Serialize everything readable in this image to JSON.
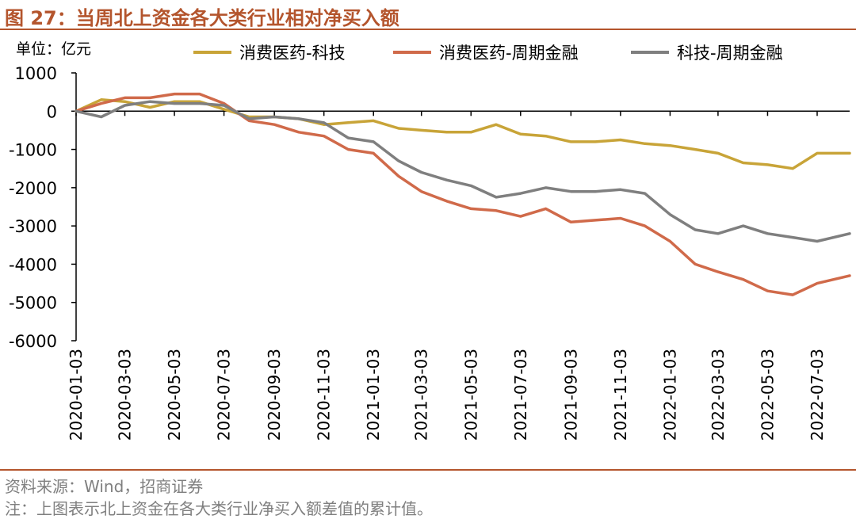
{
  "header": {
    "title": "图 27：当周北上资金各大类行业相对净买入额"
  },
  "footer": {
    "source": "资料来源：Wind，招商证券",
    "note": "注：上图表示北上资金在各大类行业净买入额差值的累计值。"
  },
  "colors": {
    "brand": "#b4552d",
    "series_1": "#c8a438",
    "series_2": "#d06a4a",
    "series_3": "#7f7f7f"
  },
  "chart_data": {
    "type": "line",
    "title": "当周北上资金各大类行业相对净买入额",
    "unit_label": "单位：亿元",
    "ylabel": "亿元",
    "xlabel": "",
    "ylim": [
      -6000,
      1000
    ],
    "yticks": [
      1000,
      0,
      -1000,
      -2000,
      -3000,
      -4000,
      -5000,
      -6000
    ],
    "ytick_labels": [
      "1000",
      "0",
      "-1000",
      "-2000",
      "-3000",
      "-4000",
      "-5000",
      "-6000"
    ],
    "xticks": [
      "2020-01-03",
      "2020-03-03",
      "2020-05-03",
      "2020-07-03",
      "2020-09-03",
      "2020-11-03",
      "2021-01-03",
      "2021-03-03",
      "2021-05-03",
      "2021-07-03",
      "2021-09-03",
      "2021-11-03",
      "2022-01-03",
      "2022-03-03",
      "2022-05-03",
      "2022-07-03"
    ],
    "x_start": "2020-01-03",
    "x_end": "2022-08-12",
    "grid": false,
    "legend_position": "top",
    "series": [
      {
        "name": "消费医药-科技",
        "color": "#c8a438",
        "x": [
          "2020-01-03",
          "2020-02-03",
          "2020-03-03",
          "2020-04-03",
          "2020-05-03",
          "2020-06-03",
          "2020-07-03",
          "2020-08-03",
          "2020-09-03",
          "2020-10-03",
          "2020-11-03",
          "2020-12-03",
          "2021-01-03",
          "2021-02-03",
          "2021-03-03",
          "2021-04-03",
          "2021-05-03",
          "2021-06-03",
          "2021-07-03",
          "2021-08-03",
          "2021-09-03",
          "2021-10-03",
          "2021-11-03",
          "2021-12-03",
          "2022-01-03",
          "2022-02-03",
          "2022-03-03",
          "2022-04-03",
          "2022-05-03",
          "2022-06-03",
          "2022-07-03",
          "2022-08-12"
        ],
        "values": [
          0,
          300,
          250,
          100,
          250,
          250,
          50,
          -150,
          -150,
          -200,
          -350,
          -300,
          -250,
          -450,
          -500,
          -550,
          -550,
          -350,
          -600,
          -650,
          -800,
          -800,
          -750,
          -850,
          -900,
          -1000,
          -1100,
          -1350,
          -1400,
          -1500,
          -1100,
          -1100
        ]
      },
      {
        "name": "消费医药-周期金融",
        "color": "#d06a4a",
        "x": [
          "2020-01-03",
          "2020-02-03",
          "2020-03-03",
          "2020-04-03",
          "2020-05-03",
          "2020-06-03",
          "2020-07-03",
          "2020-08-03",
          "2020-09-03",
          "2020-10-03",
          "2020-11-03",
          "2020-12-03",
          "2021-01-03",
          "2021-02-03",
          "2021-03-03",
          "2021-04-03",
          "2021-05-03",
          "2021-06-03",
          "2021-07-03",
          "2021-08-03",
          "2021-09-03",
          "2021-10-03",
          "2021-11-03",
          "2021-12-03",
          "2022-01-03",
          "2022-02-03",
          "2022-03-03",
          "2022-04-03",
          "2022-05-03",
          "2022-06-03",
          "2022-07-03",
          "2022-08-12"
        ],
        "values": [
          0,
          200,
          350,
          350,
          450,
          450,
          200,
          -250,
          -350,
          -550,
          -650,
          -1000,
          -1100,
          -1700,
          -2100,
          -2350,
          -2550,
          -2600,
          -2750,
          -2550,
          -2900,
          -2850,
          -2800,
          -3000,
          -3400,
          -4000,
          -4200,
          -4400,
          -4700,
          -4800,
          -4500,
          -4300
        ]
      },
      {
        "name": "科技-周期金融",
        "color": "#7f7f7f",
        "x": [
          "2020-01-03",
          "2020-02-03",
          "2020-03-03",
          "2020-04-03",
          "2020-05-03",
          "2020-06-03",
          "2020-07-03",
          "2020-08-03",
          "2020-09-03",
          "2020-10-03",
          "2020-11-03",
          "2020-12-03",
          "2021-01-03",
          "2021-02-03",
          "2021-03-03",
          "2021-04-03",
          "2021-05-03",
          "2021-06-03",
          "2021-07-03",
          "2021-08-03",
          "2021-09-03",
          "2021-10-03",
          "2021-11-03",
          "2021-12-03",
          "2022-01-03",
          "2022-02-03",
          "2022-03-03",
          "2022-04-03",
          "2022-05-03",
          "2022-06-03",
          "2022-07-03",
          "2022-08-12"
        ],
        "values": [
          0,
          -150,
          150,
          250,
          200,
          200,
          150,
          -200,
          -150,
          -200,
          -300,
          -700,
          -800,
          -1300,
          -1600,
          -1800,
          -1950,
          -2250,
          -2150,
          -2000,
          -2100,
          -2100,
          -2050,
          -2150,
          -2700,
          -3100,
          -3200,
          -3000,
          -3200,
          -3300,
          -3400,
          -3200
        ]
      }
    ]
  }
}
